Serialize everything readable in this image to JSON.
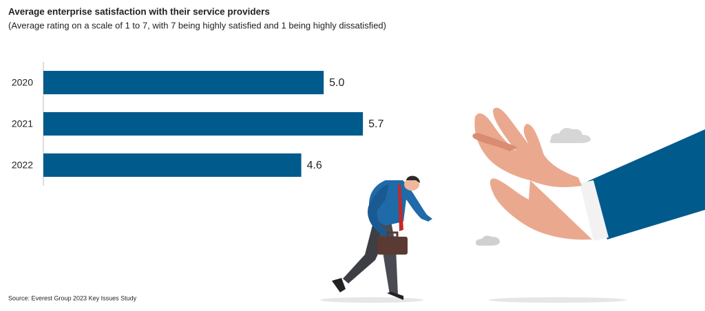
{
  "chart_data": {
    "type": "bar",
    "orientation": "horizontal",
    "title": "Average enterprise satisfaction with their service providers",
    "subtitle": "(Average rating on a scale of 1 to 7, with 7 being highly satisfied and 1 being highly dissatisfied)",
    "categories": [
      "2020",
      "2021",
      "2022"
    ],
    "values": [
      5.0,
      5.7,
      4.6
    ],
    "value_labels": [
      "5.0",
      "5.7",
      "4.6"
    ],
    "color": "#005a8c",
    "xlim": [
      0,
      7
    ],
    "source": "Source:  Everest Group 2023 Key Issues Study"
  }
}
